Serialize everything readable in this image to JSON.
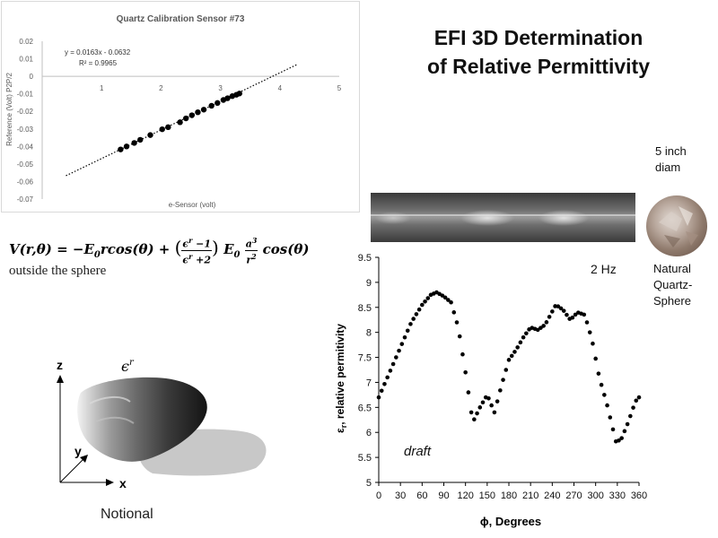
{
  "title": {
    "line1": "EFI 3D Determination",
    "line2": "of Relative Permittivity"
  },
  "sphere_labels": {
    "size_line1": "5 inch",
    "size_line2": "diam",
    "name_line1": "Natural",
    "name_line2": "Quartz-",
    "name_line3": "Sphere"
  },
  "equation": {
    "lhs": "V(r,θ) = −E",
    "lhs_sub": "0",
    "term1": "rcos(θ) +",
    "frac_num": "ϵ",
    "frac_num_sup": "r",
    "frac_num_tail": " −1",
    "frac_den": "ϵ",
    "frac_den_sup": "r",
    "frac_den_tail": " +2",
    "e": "E",
    "e_sub": "0",
    "a": "a",
    "a_sup": "3",
    "r": "r",
    "r_sup": "2",
    "tail": "cos(θ)",
    "note": "outside the sphere"
  },
  "notional": {
    "label": "Notional",
    "axis_z": "z",
    "axis_y": "y",
    "axis_x": "x",
    "epsilon": "ϵ",
    "epsilon_sup": "r"
  },
  "colors": {
    "dots": "#000000",
    "grid_axis": "#bfbfbf",
    "trend": "#000000",
    "title_calib": "#595959"
  },
  "chart_data": [
    {
      "type": "scatter",
      "title": "Quartz Calibration Sensor #73",
      "xlabel": "e-Sensor (volt)",
      "ylabel": "Reference (Volt) P2P/2",
      "xlim": [
        0,
        5
      ],
      "ylim": [
        -0.07,
        0.02
      ],
      "xticks": [
        "1",
        "2",
        "3",
        "4",
        "5"
      ],
      "yticks": [
        "0.02",
        "0.01",
        "0",
        "-0.01",
        "-0.02",
        "-0.03",
        "-0.04",
        "-0.05",
        "-0.06",
        "-0.07"
      ],
      "trendline": {
        "equation": "y = 0.0163x - 0.0632",
        "r2": "R² = 0.9965",
        "slope": 0.0163,
        "intercept": -0.0632,
        "x_range": [
          0.4,
          4.3
        ]
      },
      "points": [
        [
          1.32,
          -0.0417
        ],
        [
          1.42,
          -0.04
        ],
        [
          1.55,
          -0.038
        ],
        [
          1.65,
          -0.0362
        ],
        [
          1.82,
          -0.0335
        ],
        [
          2.02,
          -0.0302
        ],
        [
          2.12,
          -0.029
        ],
        [
          2.32,
          -0.0262
        ],
        [
          2.42,
          -0.024
        ],
        [
          2.52,
          -0.0222
        ],
        [
          2.62,
          -0.0205
        ],
        [
          2.72,
          -0.019
        ],
        [
          2.85,
          -0.0168
        ],
        [
          2.95,
          -0.0152
        ],
        [
          3.05,
          -0.0135
        ],
        [
          3.12,
          -0.0125
        ],
        [
          3.2,
          -0.0113
        ],
        [
          3.27,
          -0.0105
        ],
        [
          3.32,
          -0.0098
        ]
      ]
    },
    {
      "type": "scatter",
      "xlabel": "ϕ, Degrees",
      "ylabel": "εr, relative permitivity",
      "ylabel_main": "ε",
      "ylabel_sub": "r",
      "ylabel_tail": ", relative permitivity",
      "xlim": [
        0,
        360
      ],
      "ylim": [
        5,
        9.5
      ],
      "xticks": [
        "0",
        "30",
        "60",
        "90",
        "120",
        "150",
        "180",
        "210",
        "240",
        "270",
        "300",
        "330",
        "360"
      ],
      "yticks": [
        "9.5",
        "9",
        "8.5",
        "8",
        "7.5",
        "7",
        "6.5",
        "6",
        "5.5",
        "5"
      ],
      "annotations": {
        "freq": "2 Hz",
        "status": "draft"
      },
      "curve_knots": [
        [
          0,
          6.7
        ],
        [
          15,
          7.2
        ],
        [
          30,
          7.7
        ],
        [
          45,
          8.2
        ],
        [
          60,
          8.55
        ],
        [
          72,
          8.75
        ],
        [
          80,
          8.8
        ],
        [
          90,
          8.72
        ],
        [
          100,
          8.6
        ],
        [
          110,
          8.1
        ],
        [
          120,
          7.2
        ],
        [
          130,
          6.2
        ],
        [
          140,
          6.5
        ],
        [
          150,
          6.75
        ],
        [
          160,
          6.4
        ],
        [
          170,
          6.95
        ],
        [
          180,
          7.45
        ],
        [
          190,
          7.65
        ],
        [
          200,
          7.9
        ],
        [
          210,
          8.1
        ],
        [
          220,
          8.05
        ],
        [
          230,
          8.15
        ],
        [
          245,
          8.55
        ],
        [
          255,
          8.45
        ],
        [
          265,
          8.25
        ],
        [
          275,
          8.4
        ],
        [
          285,
          8.35
        ],
        [
          295,
          7.85
        ],
        [
          305,
          7.1
        ],
        [
          315,
          6.6
        ],
        [
          328,
          5.82
        ],
        [
          335,
          5.85
        ],
        [
          345,
          6.2
        ],
        [
          355,
          6.62
        ],
        [
          360,
          6.7
        ]
      ],
      "step_deg": 4
    }
  ]
}
